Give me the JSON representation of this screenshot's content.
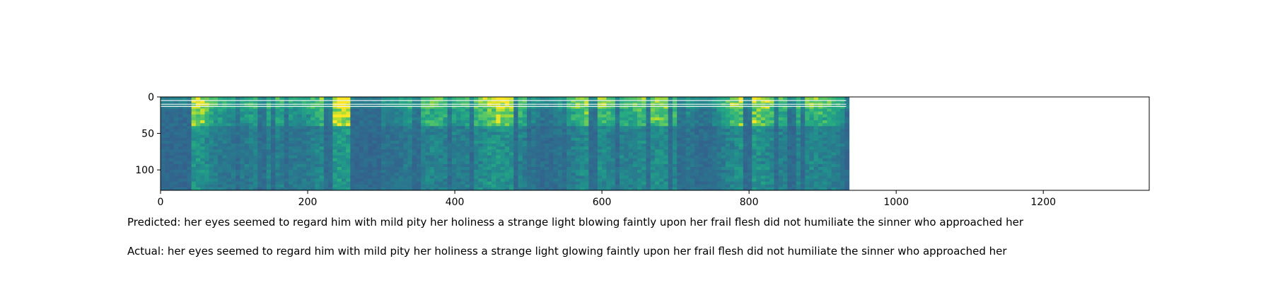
{
  "chart_data": {
    "type": "heatmap",
    "title": "",
    "xlabel": "",
    "ylabel": "",
    "xlim": [
      0,
      1344
    ],
    "ylim": [
      128,
      0
    ],
    "data_extent_x": [
      0,
      932
    ],
    "x_ticks": [
      0,
      200,
      400,
      600,
      800,
      1000,
      1200
    ],
    "y_ticks": [
      0,
      50,
      100
    ],
    "colormap": "viridis",
    "grid": false,
    "legend": "none"
  },
  "captions": {
    "predicted": "Predicted: her eyes seemed to regard him with mild pity her holiness a strange light blowing faintly upon her frail flesh did not humiliate the sinner who approached her",
    "actual": "Actual: her eyes seemed to regard him with mild pity her holiness a strange light glowing faintly upon her frail flesh did not humiliate the sinner who approached her"
  },
  "colors": {
    "viridis_low": "#30508c",
    "viridis_mid": "#21a585",
    "viridis_high": "#fde725"
  }
}
